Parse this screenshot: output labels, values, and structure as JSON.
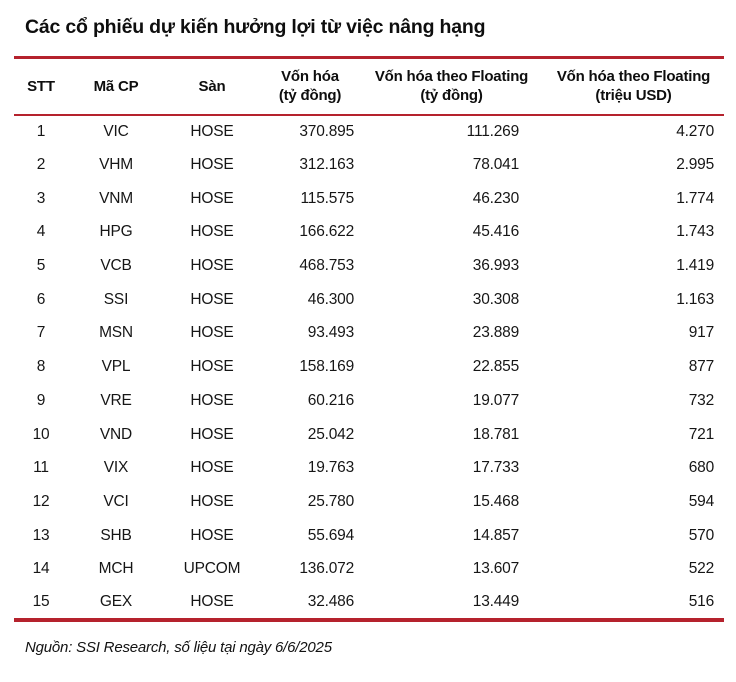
{
  "title": "Các cổ phiếu dự kiến hưởng lợi từ việc nâng hạng",
  "colors": {
    "rule_red": "#b5222d",
    "text": "#161616",
    "background": "#ffffff"
  },
  "table": {
    "columns": [
      {
        "label": "STT",
        "sub": ""
      },
      {
        "label": "Mã CP",
        "sub": ""
      },
      {
        "label": "Sàn",
        "sub": ""
      },
      {
        "label": "Vốn hóa",
        "sub": "(tỷ đồng)"
      },
      {
        "label": "Vốn hóa theo Floating",
        "sub": "(tỷ đồng)"
      },
      {
        "label": "Vốn hóa theo Floating",
        "sub": "(triệu USD)"
      }
    ],
    "rows": [
      [
        "1",
        "VIC",
        "HOSE",
        "370.895",
        "111.269",
        "4.270"
      ],
      [
        "2",
        "VHM",
        "HOSE",
        "312.163",
        "78.041",
        "2.995"
      ],
      [
        "3",
        "VNM",
        "HOSE",
        "115.575",
        "46.230",
        "1.774"
      ],
      [
        "4",
        "HPG",
        "HOSE",
        "166.622",
        "45.416",
        "1.743"
      ],
      [
        "5",
        "VCB",
        "HOSE",
        "468.753",
        "36.993",
        "1.419"
      ],
      [
        "6",
        "SSI",
        "HOSE",
        "46.300",
        "30.308",
        "1.163"
      ],
      [
        "7",
        "MSN",
        "HOSE",
        "93.493",
        "23.889",
        "917"
      ],
      [
        "8",
        "VPL",
        "HOSE",
        "158.169",
        "22.855",
        "877"
      ],
      [
        "9",
        "VRE",
        "HOSE",
        "60.216",
        "19.077",
        "732"
      ],
      [
        "10",
        "VND",
        "HOSE",
        "25.042",
        "18.781",
        "721"
      ],
      [
        "11",
        "VIX",
        "HOSE",
        "19.763",
        "17.733",
        "680"
      ],
      [
        "12",
        "VCI",
        "HOSE",
        "25.780",
        "15.468",
        "594"
      ],
      [
        "13",
        "SHB",
        "HOSE",
        "55.694",
        "14.857",
        "570"
      ],
      [
        "14",
        "MCH",
        "UPCOM",
        "136.072",
        "13.607",
        "522"
      ],
      [
        "15",
        "GEX",
        "HOSE",
        "32.486",
        "13.449",
        "516"
      ]
    ]
  },
  "source_note": "Nguồn: SSI Research, số liệu tại ngày 6/6/2025"
}
